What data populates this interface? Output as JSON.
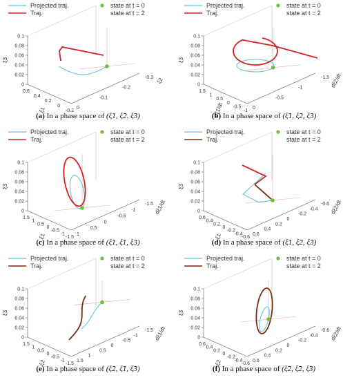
{
  "legend": {
    "projected": "Projected traj.",
    "traj": "Traj.",
    "state0": "state at t = 0",
    "state2": "state at t = 2"
  },
  "colors": {
    "projected": "#5ec8d8",
    "traj": "#d42020",
    "traj_dark": "#7a2a12",
    "state_dot": "#6bbf3a",
    "axis": "#555555",
    "guide": "#e9a8a8"
  },
  "panels": [
    {
      "id": "a",
      "caption_tag": "(a)",
      "caption_text": "In a phase space of",
      "caption_vars": "(ξ̃1, ξ̃2, ξ̃3)",
      "traj_color": "red",
      "z_label": "ξ3",
      "z_ticks": [
        "0",
        "0.02",
        "0.04",
        "0.06",
        "0.08",
        "0.1"
      ],
      "x_label": "ξ1",
      "x_ticks": [
        "0.6",
        "0.4",
        "0.2",
        "0",
        "-0.2"
      ],
      "y_label": "ξ2",
      "y_ticks": [
        "0",
        "-0.1",
        "-0.2",
        "-0.3"
      ]
    },
    {
      "id": "b",
      "caption_tag": "(b)",
      "caption_text": "In a phase space of",
      "caption_vars": "(ξ̃̇1, ξ̃2, ξ̃3)",
      "traj_color": "red",
      "z_label": "ξ3",
      "z_ticks": [
        "0",
        "0.02",
        "0.04",
        "0.06",
        "0.08",
        "0.1"
      ],
      "x_label": "dξ1/dt",
      "x_ticks": [
        "1.5",
        "1",
        "0.5",
        "0",
        "-0.5",
        "-1"
      ],
      "y_label": "dξ2/dt",
      "y_ticks": [
        "0",
        "-0.5",
        "-1",
        "-1.5"
      ]
    },
    {
      "id": "c",
      "caption_tag": "(c)",
      "caption_text": "In a phase space of",
      "caption_vars": "(ξ̃1, ξ̃̇1, ξ̃3)",
      "traj_color": "red",
      "z_label": "ξ3",
      "z_ticks": [
        "0",
        "0.02",
        "0.04",
        "0.06",
        "0.08",
        "0.1"
      ],
      "x_label": "ξ1",
      "x_ticks": [
        "1.5",
        "1",
        "0.5",
        "0",
        "-0.5",
        "-1",
        "-1.5"
      ],
      "y_label": "dξ1/dt",
      "y_ticks": [
        "1",
        "0.5",
        "0",
        "-0.5",
        "-1",
        "-1.5"
      ]
    },
    {
      "id": "d",
      "caption_tag": "(d)",
      "caption_text": "In a phase space of",
      "caption_vars": "(ξ̃1, ξ̃̇2, ξ̃3)",
      "traj_color": "mixed",
      "z_label": "ξ3",
      "z_ticks": [
        "0",
        "0.02",
        "0.04",
        "0.06",
        "0.08",
        "0.1"
      ],
      "x_label": "ξ1",
      "x_ticks": [
        "0.6",
        "0.4",
        "0.2",
        "0",
        "-0.2",
        "-0.4",
        "-0.6"
      ],
      "y_label": "dξ2/dt",
      "y_ticks": [
        "0.6",
        "0.4",
        "0.2",
        "0",
        "-0.2",
        "-0.4",
        "-0.6"
      ]
    },
    {
      "id": "e",
      "caption_tag": "(e)",
      "caption_text": "In a phase space of",
      "caption_vars": "(ξ̃2, ξ̃̇1, ξ̃3)",
      "traj_color": "dark",
      "z_label": "ξ3",
      "z_ticks": [
        "0",
        "0.02",
        "0.04",
        "0.06",
        "0.08",
        "0.1"
      ],
      "x_label": "ξ2",
      "x_ticks": [
        "1.5",
        "1",
        "0.5",
        "0",
        "-0.5",
        "-1",
        "-1.5"
      ],
      "y_label": "dξ1/dt",
      "y_ticks": [
        "1.5",
        "1",
        "0.5",
        "0",
        "-0.5",
        "-1",
        "-1.5"
      ]
    },
    {
      "id": "f",
      "caption_tag": "(f)",
      "caption_text": "In a phase space of",
      "caption_vars": "(ξ̃2, ξ̃̇2, ξ̃3)",
      "traj_color": "dark",
      "z_label": "ξ3",
      "z_ticks": [
        "0",
        "0.02",
        "0.04",
        "0.06",
        "0.08",
        "0.1"
      ],
      "x_label": "ξ2",
      "x_ticks": [
        "0.6",
        "0.4",
        "0.2",
        "0",
        "-0.2",
        "-0.4",
        "-0.6"
      ],
      "y_label": "dξ2/dt",
      "y_ticks": [
        "0.6",
        "0.4",
        "0.2",
        "0",
        "-0.2",
        "-0.4",
        "-0.6"
      ]
    }
  ],
  "chart_data": {
    "type": "line",
    "title": "",
    "panels": [
      "a",
      "b",
      "c",
      "d",
      "e",
      "f"
    ],
    "series": [
      {
        "name": "Projected traj."
      },
      {
        "name": "Traj."
      }
    ],
    "markers": [
      "state at t = 0",
      "state at t = 2"
    ],
    "zlim": [
      0,
      0.1
    ],
    "grid": false,
    "legend": "top"
  }
}
